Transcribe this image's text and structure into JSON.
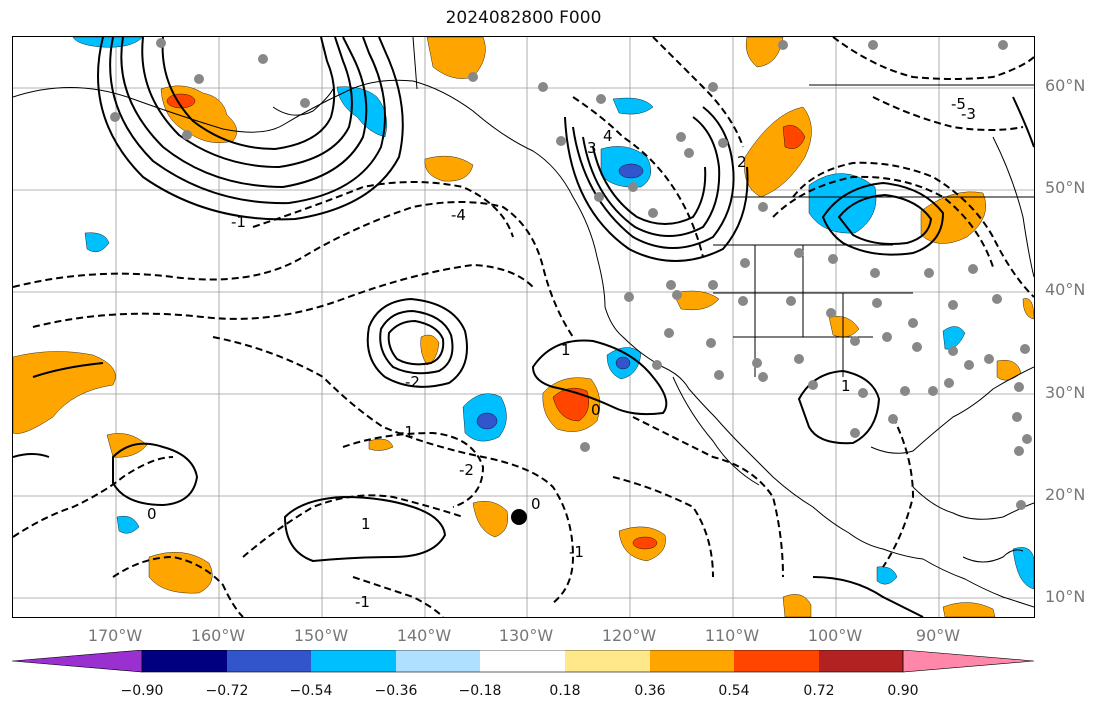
{
  "title": "2024082800 F000",
  "lat_labels": [
    "60°N",
    "50°N",
    "40°N",
    "30°N",
    "20°N",
    "10°N"
  ],
  "lon_labels": [
    "170°W",
    "160°W",
    "150°W",
    "140°W",
    "130°W",
    "120°W",
    "110°W",
    "100°W",
    "90°W"
  ],
  "contour_labels": [
    "-4",
    "-2",
    "-1",
    "0",
    "1",
    "-2",
    "0",
    "1",
    "-1",
    "1",
    "-1",
    "0",
    "-5",
    "-3",
    "2",
    "-1",
    "3",
    "4"
  ],
  "colorbar": {
    "tick_labels": [
      "−0.90",
      "−0.72",
      "−0.54",
      "−0.36",
      "−0.18",
      "0.18",
      "0.36",
      "0.54",
      "0.72",
      "0.90"
    ],
    "colors": [
      "#9b30d0",
      "#000080",
      "#3355cc",
      "#00bfff",
      "#b0e0ff",
      "#ffffff",
      "#ffe88a",
      "#ffa500",
      "#ff4500",
      "#b22222",
      "#ff88aa"
    ],
    "extend": "both"
  },
  "colors": {
    "land_outline": "#000000",
    "gridline": "#999999",
    "station_dot": "#888888",
    "tick_label": "#777777"
  }
}
